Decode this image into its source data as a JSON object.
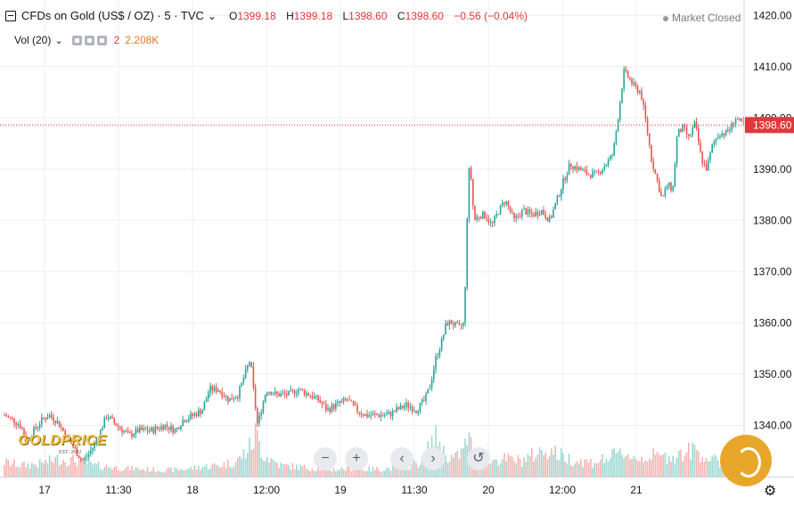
{
  "header": {
    "symbol": "CFDs on Gold (US$ / OZ) · 5 · TVC",
    "chevron": "⌄",
    "ohlc": [
      {
        "k": "O",
        "v": "1399.18"
      },
      {
        "k": "H",
        "v": "1399.18"
      },
      {
        "k": "L",
        "v": "1398.60"
      },
      {
        "k": "C",
        "v": "1398.60"
      }
    ],
    "change": "−0.56 (−0.04%)"
  },
  "volume": {
    "label": "Vol (20)",
    "count": "2",
    "value": "2.208K"
  },
  "status": "Market Closed",
  "current_price_label": "1398.60",
  "controls": {
    "zoom_out": "−",
    "zoom_in": "+",
    "scroll_left": "‹",
    "scroll_right": "›",
    "reset": "↺"
  },
  "logo": {
    "name": "GOLDPRICE",
    "tagline": "EST. 2002"
  },
  "colors": {
    "up": "#26a69a",
    "down": "#ef5350",
    "current_line": "#e0383b",
    "grid": "#eceff2"
  },
  "chart_data": {
    "type": "candlestick",
    "title": "CFDs on Gold (US$ / OZ)",
    "interval": "5",
    "ylim": [
      1330,
      1423
    ],
    "y_ticks": [
      1340,
      1350,
      1360,
      1370,
      1380,
      1390,
      1400,
      1410,
      1420
    ],
    "x_ticks": [
      "17",
      "11:30",
      "18",
      "12:00",
      "19",
      "11:30",
      "20",
      "12:00",
      "21"
    ],
    "current_price": 1398.6,
    "grid": true,
    "price_path": [
      [
        0,
        1342
      ],
      [
        10,
        1341
      ],
      [
        18,
        1340
      ],
      [
        25,
        1337
      ],
      [
        33,
        1339
      ],
      [
        42,
        1341
      ],
      [
        50,
        1342
      ],
      [
        58,
        1341
      ],
      [
        66,
        1339
      ],
      [
        73,
        1337
      ],
      [
        80,
        1335
      ],
      [
        87,
        1333
      ],
      [
        93,
        1334
      ],
      [
        100,
        1336
      ],
      [
        108,
        1339
      ],
      [
        115,
        1342
      ],
      [
        120,
        1341
      ],
      [
        126,
        1340
      ],
      [
        133,
        1339
      ],
      [
        140,
        1338
      ],
      [
        150,
        1339
      ],
      [
        165,
        1339
      ],
      [
        180,
        1340
      ],
      [
        192,
        1339
      ],
      [
        200,
        1341
      ],
      [
        212,
        1342
      ],
      [
        222,
        1343
      ],
      [
        230,
        1347
      ],
      [
        240,
        1347
      ],
      [
        252,
        1345
      ],
      [
        262,
        1346
      ],
      [
        270,
        1350
      ],
      [
        276,
        1353
      ],
      [
        280,
        1346
      ],
      [
        284,
        1340
      ],
      [
        288,
        1343
      ],
      [
        294,
        1347
      ],
      [
        305,
        1346
      ],
      [
        318,
        1346
      ],
      [
        330,
        1347
      ],
      [
        342,
        1346
      ],
      [
        352,
        1345
      ],
      [
        362,
        1343
      ],
      [
        372,
        1344
      ],
      [
        385,
        1345
      ],
      [
        395,
        1343
      ],
      [
        405,
        1342
      ],
      [
        418,
        1342
      ],
      [
        430,
        1342
      ],
      [
        440,
        1343
      ],
      [
        452,
        1344
      ],
      [
        462,
        1343
      ],
      [
        472,
        1345
      ],
      [
        478,
        1348
      ],
      [
        484,
        1353
      ],
      [
        490,
        1356
      ],
      [
        496,
        1360
      ],
      [
        502,
        1360
      ],
      [
        510,
        1359
      ],
      [
        516,
        1360
      ],
      [
        519,
        1380
      ],
      [
        522,
        1392
      ],
      [
        527,
        1380
      ],
      [
        533,
        1381
      ],
      [
        540,
        1381
      ],
      [
        547,
        1379
      ],
      [
        555,
        1382
      ],
      [
        562,
        1384
      ],
      [
        572,
        1380
      ],
      [
        582,
        1382
      ],
      [
        592,
        1381
      ],
      [
        602,
        1382
      ],
      [
        612,
        1380
      ],
      [
        620,
        1384
      ],
      [
        628,
        1388
      ],
      [
        635,
        1391
      ],
      [
        645,
        1390
      ],
      [
        655,
        1389
      ],
      [
        665,
        1389
      ],
      [
        675,
        1391
      ],
      [
        683,
        1393
      ],
      [
        690,
        1402
      ],
      [
        695,
        1409
      ],
      [
        700,
        1408
      ],
      [
        707,
        1406
      ],
      [
        714,
        1405
      ],
      [
        720,
        1399
      ],
      [
        726,
        1392
      ],
      [
        732,
        1388
      ],
      [
        738,
        1384
      ],
      [
        744,
        1387
      ],
      [
        750,
        1386
      ],
      [
        755,
        1397
      ],
      [
        762,
        1398
      ],
      [
        768,
        1396
      ],
      [
        775,
        1399
      ],
      [
        782,
        1392
      ],
      [
        788,
        1390
      ],
      [
        795,
        1395
      ],
      [
        802,
        1397
      ],
      [
        809,
        1397
      ],
      [
        815,
        1398
      ],
      [
        820,
        1400
      ],
      [
        826,
        1399
      ],
      [
        830,
        1398.6
      ]
    ],
    "volume_series": [
      [
        0,
        18
      ],
      [
        20,
        14
      ],
      [
        40,
        16
      ],
      [
        60,
        22
      ],
      [
        80,
        20
      ],
      [
        100,
        14
      ],
      [
        120,
        12
      ],
      [
        140,
        10
      ],
      [
        160,
        9
      ],
      [
        180,
        8
      ],
      [
        200,
        9
      ],
      [
        220,
        12
      ],
      [
        240,
        14
      ],
      [
        260,
        18
      ],
      [
        278,
        40
      ],
      [
        282,
        55
      ],
      [
        290,
        28
      ],
      [
        310,
        14
      ],
      [
        330,
        12
      ],
      [
        350,
        10
      ],
      [
        370,
        9
      ],
      [
        390,
        10
      ],
      [
        410,
        9
      ],
      [
        430,
        10
      ],
      [
        450,
        12
      ],
      [
        470,
        20
      ],
      [
        480,
        45
      ],
      [
        486,
        48
      ],
      [
        494,
        28
      ],
      [
        505,
        22
      ],
      [
        515,
        32
      ],
      [
        520,
        50
      ],
      [
        528,
        26
      ],
      [
        545,
        20
      ],
      [
        560,
        22
      ],
      [
        580,
        20
      ],
      [
        600,
        30
      ],
      [
        610,
        34
      ],
      [
        625,
        26
      ],
      [
        640,
        20
      ],
      [
        660,
        18
      ],
      [
        680,
        24
      ],
      [
        695,
        30
      ],
      [
        710,
        22
      ],
      [
        725,
        26
      ],
      [
        740,
        24
      ],
      [
        760,
        28
      ],
      [
        775,
        34
      ],
      [
        790,
        22
      ],
      [
        810,
        16
      ],
      [
        830,
        12
      ]
    ]
  }
}
